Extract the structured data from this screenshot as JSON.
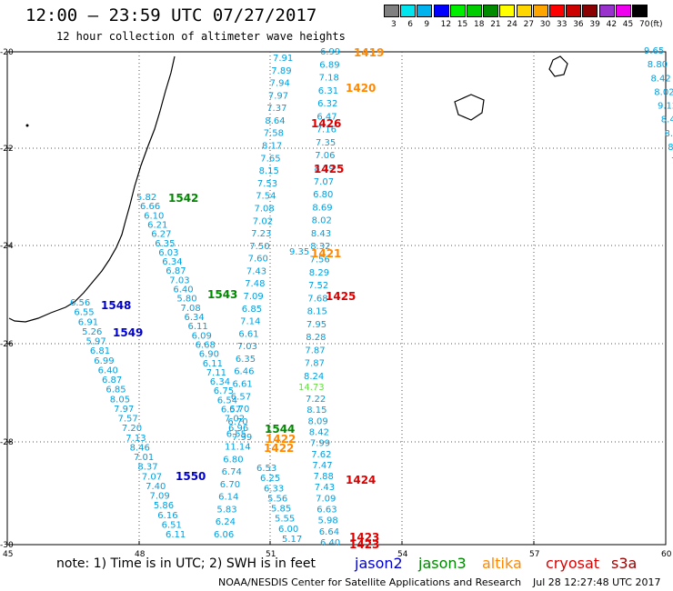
{
  "header": {
    "title": "12:00 – 23:59 UTC 07/27/2017",
    "subtitle": "12 hour collection of altimeter wave heights"
  },
  "legend": {
    "unit": "(ft)",
    "bins": [
      {
        "label": "3",
        "color": "#808080"
      },
      {
        "label": "6",
        "color": "#00e5ee"
      },
      {
        "label": "9",
        "color": "#00b2ee"
      },
      {
        "label": "12",
        "color": "#0000ff"
      },
      {
        "label": "15",
        "color": "#00ee00"
      },
      {
        "label": "18",
        "color": "#00cd00"
      },
      {
        "label": "21",
        "color": "#008b00"
      },
      {
        "label": "24",
        "color": "#ffff00"
      },
      {
        "label": "27",
        "color": "#ffd700"
      },
      {
        "label": "30",
        "color": "#ffa500"
      },
      {
        "label": "33",
        "color": "#ff0000"
      },
      {
        "label": "36",
        "color": "#cd0000"
      },
      {
        "label": "39",
        "color": "#8b0000"
      },
      {
        "label": "42",
        "color": "#9932cc"
      },
      {
        "label": "45",
        "color": "#ee00ee"
      },
      {
        "label": "70",
        "color": "#000000"
      }
    ]
  },
  "axes": {
    "lat_labels": [
      "-20",
      "-22",
      "-24",
      "-26",
      "-28",
      "-30"
    ],
    "lon_labels": [
      "45",
      "48",
      "51",
      "54",
      "57",
      "60"
    ]
  },
  "colors": {
    "light_blue": "#00a0e0",
    "cyan": "#00b8d8",
    "green_light": "#66dd44",
    "jason2": "#0000cc",
    "jason3": "#008800",
    "altika": "#ff8800",
    "cryosat": "#dd0000",
    "s3a": "#990000"
  },
  "tracks": [
    {
      "color": "light_blue",
      "values": [
        "5.82",
        "6.66",
        "6.10",
        "6.21",
        "6.27",
        "6.35",
        "6.03",
        "6.34",
        "6.87",
        "7.03",
        "6.40",
        "5.80",
        "7.08",
        "6.34",
        "6.11",
        "6.09",
        "6.68",
        "6.90",
        "6.11",
        "7.11",
        "6.34",
        "6.75",
        "6.54",
        "6.57",
        "7.02",
        "6.96",
        "7.99"
      ]
    },
    {
      "color": "light_blue",
      "values": [
        "6.56",
        "6.55",
        "6.91",
        "5.26",
        "5.97",
        "6.81",
        "6.99",
        "6.40",
        "6.87",
        "6.85",
        "8.05",
        "7.97",
        "7.57",
        "7.20",
        "7.13",
        "8.46",
        "7.01",
        "8.37",
        "7.07",
        "7.40",
        "7.09",
        "5.86",
        "6.16",
        "6.51",
        "6.11"
      ]
    },
    {
      "color": "light_blue",
      "values": [
        "7.91",
        "7.89",
        "7.94",
        "7.97",
        "7.37",
        "8.64",
        "7.58",
        "8.17",
        "7.65",
        "8.15",
        "7.53",
        "7.54",
        "7.08",
        "7.02",
        "7.23",
        "7.50",
        "7.60",
        "7.43",
        "7.48",
        "7.09",
        "6.85",
        "7.14",
        "6.61",
        "7.03",
        "6.35",
        "6.46",
        "6.61",
        "6.57",
        "6.70",
        "6.70",
        "6.55",
        "11.14",
        "6.80",
        "6.74",
        "6.70",
        "6.14",
        "5.83",
        "6.24",
        "6.06"
      ]
    },
    {
      "color": "light_blue",
      "values": [
        "6.99",
        "6.89",
        "7.18",
        "6.31",
        "6.32",
        "6.47",
        "7.16",
        "7.35",
        "7.06",
        "8.29",
        "7.07",
        "6.80",
        "8.69",
        "8.02",
        "8.43",
        "8.32",
        "7.56",
        "8.29",
        "7.52",
        "7.68",
        "8.15",
        "7.95",
        "8.28",
        "7.87",
        "7.87",
        "8.24"
      ]
    },
    {
      "color": "light_blue",
      "values": [
        "7.22",
        "8.15",
        "8.09",
        "8.42",
        "7.99",
        "7.62",
        "7.47",
        "7.88",
        "7.43",
        "7.09",
        "6.63",
        "5.98",
        "6.64",
        "6.40"
      ]
    },
    {
      "color": "light_blue",
      "values": [
        "6.53",
        "6.25",
        "6.33",
        "5.56",
        "5.85",
        "5.55",
        "6.00",
        "5.17"
      ]
    },
    {
      "color": "light_blue",
      "values": [
        "9.65",
        "8.80",
        "8.42",
        "8.02",
        "9.12",
        "8.4",
        "8.3",
        "8",
        "7"
      ]
    }
  ],
  "special_values": [
    {
      "value": "14.73",
      "color": "green_light"
    },
    {
      "value": "9.35",
      "color": "light_blue"
    }
  ],
  "time_labels": [
    {
      "time": "1419",
      "color": "altika"
    },
    {
      "time": "1420",
      "color": "altika"
    },
    {
      "time": "1426",
      "color": "cryosat"
    },
    {
      "time": "1425",
      "color": "cryosat"
    },
    {
      "time": "1542",
      "color": "jason3"
    },
    {
      "time": "1421",
      "color": "altika"
    },
    {
      "time": "1543",
      "color": "jason3"
    },
    {
      "time": "1425",
      "color": "cryosat"
    },
    {
      "time": "1548",
      "color": "jason2"
    },
    {
      "time": "1549",
      "color": "jason2"
    },
    {
      "time": "1544",
      "color": "jason3"
    },
    {
      "time": "1422",
      "color": "altika"
    },
    {
      "time": "1422",
      "color": "altika"
    },
    {
      "time": "1550",
      "color": "jason2"
    },
    {
      "time": "1424",
      "color": "cryosat"
    },
    {
      "time": "1423",
      "color": "cryosat"
    },
    {
      "time": "1423",
      "color": "cryosat"
    }
  ],
  "footer": {
    "note": "note: 1) Time is in UTC; 2) SWH is in feet",
    "satellites": [
      {
        "name": "jason2",
        "color": "jason2"
      },
      {
        "name": "jason3",
        "color": "jason3"
      },
      {
        "name": "altika",
        "color": "altika"
      },
      {
        "name": "cryosat",
        "color": "cryosat"
      },
      {
        "name": "s3a",
        "color": "s3a"
      }
    ],
    "credit": "NOAA/NESDIS Center for Satellite Applications and Research",
    "timestamp": "Jul 28 12:27:48 UTC 2017"
  }
}
